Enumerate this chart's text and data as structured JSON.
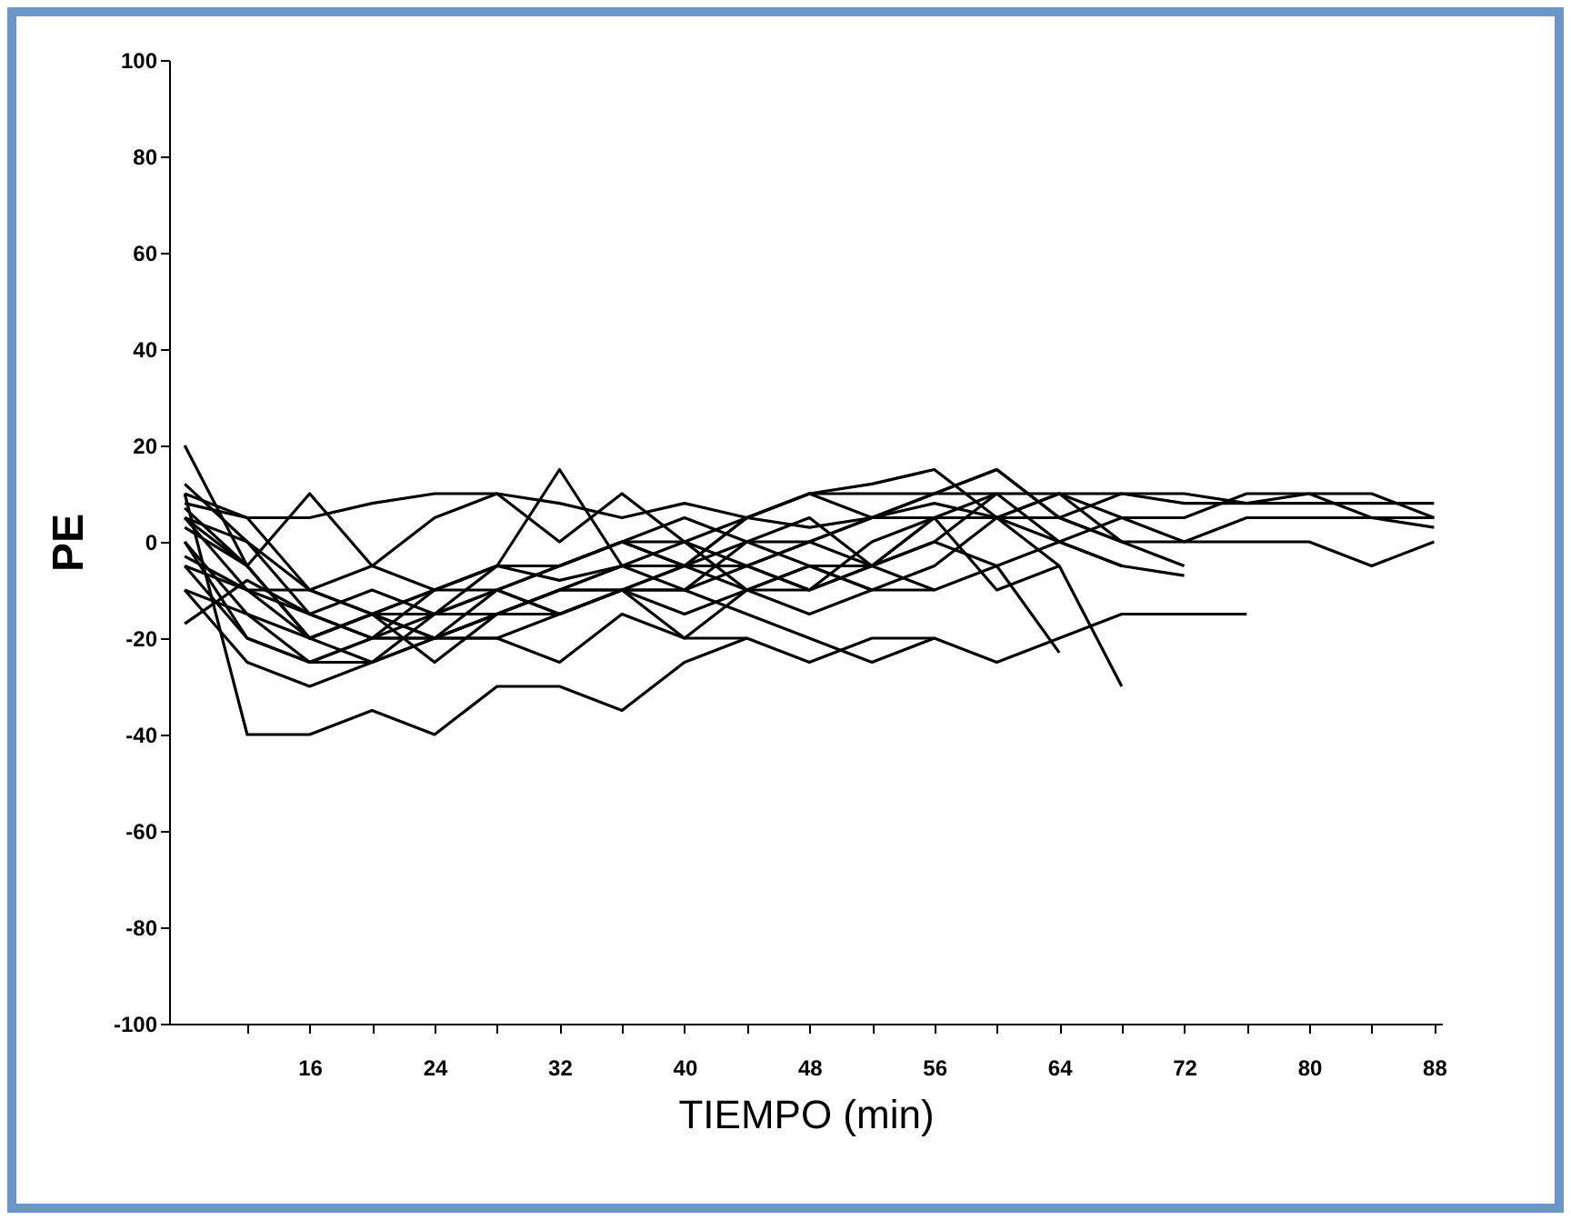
{
  "chart_data": {
    "type": "line",
    "xlabel": "TIEMPO (min)",
    "ylabel": "PE",
    "x": [
      8,
      12,
      16,
      20,
      24,
      28,
      32,
      36,
      40,
      44,
      48,
      52,
      56,
      60,
      64,
      68,
      72,
      76,
      80,
      84,
      88
    ],
    "xlim": [
      7,
      88.5
    ],
    "ylim": [
      -100,
      100
    ],
    "xticks": [
      {
        "value": 12,
        "label": null
      },
      16,
      {
        "value": 20,
        "label": null
      },
      24,
      {
        "value": 28,
        "label": null
      },
      32,
      {
        "value": 36,
        "label": null
      },
      40,
      {
        "value": 44,
        "label": null
      },
      48,
      {
        "value": 52,
        "label": null
      },
      56,
      {
        "value": 60,
        "label": null
      },
      64,
      {
        "value": 68,
        "label": null
      },
      72,
      {
        "value": 76,
        "label": null
      },
      80,
      {
        "value": 84,
        "label": null
      },
      88
    ],
    "yticks": [
      -100,
      -80,
      -60,
      -40,
      -20,
      0,
      20,
      40,
      60,
      80,
      100
    ],
    "grid": false,
    "legend": false,
    "marker": "none",
    "line_style": "solid",
    "series": [
      {
        "color": "#000000",
        "values": [
          10,
          -40,
          -40,
          -35,
          -40,
          -30,
          -30,
          -35,
          -25,
          -20,
          null,
          null,
          null,
          null,
          null,
          null,
          null,
          null,
          null,
          null,
          null
        ]
      },
      {
        "color": "#000000",
        "values": [
          20,
          -5,
          -20,
          -25,
          -15,
          -10,
          -15,
          -10,
          -5,
          -10,
          -5,
          -10,
          null,
          null,
          null,
          null,
          null,
          null,
          null,
          null,
          null
        ]
      },
      {
        "color": "#000000",
        "values": [
          10,
          5,
          5,
          8,
          10,
          10,
          8,
          5,
          8,
          5,
          10,
          10,
          10,
          10,
          10,
          10,
          8,
          8,
          8,
          8,
          8
        ]
      },
      {
        "color": "#000000",
        "values": [
          5,
          -10,
          -15,
          -20,
          -10,
          -5,
          -8,
          -5,
          0,
          5,
          3,
          5,
          8,
          5,
          5,
          0,
          0,
          0,
          0,
          -5,
          0
        ]
      },
      {
        "color": "#000000",
        "values": [
          0,
          -15,
          -20,
          -15,
          -10,
          -10,
          -5,
          0,
          -5,
          5,
          10,
          12,
          15,
          5,
          0,
          5,
          5,
          10,
          10,
          10,
          5
        ]
      },
      {
        "color": "#000000",
        "values": [
          8,
          5,
          -10,
          -15,
          -20,
          -15,
          -10,
          -5,
          -5,
          0,
          -5,
          -10,
          -5,
          5,
          -5,
          -30,
          null,
          null,
          null,
          null,
          null
        ]
      },
      {
        "color": "#000000",
        "values": [
          -5,
          -20,
          -25,
          -25,
          -20,
          -20,
          -15,
          -10,
          -10,
          -15,
          -20,
          -25,
          -20,
          -25,
          -20,
          -15,
          -15,
          -15,
          null,
          null,
          null
        ]
      },
      {
        "color": "#000000",
        "values": [
          -10,
          -25,
          -30,
          -25,
          -20,
          -15,
          -10,
          -10,
          -15,
          -10,
          -5,
          -5,
          0,
          -5,
          -23,
          null,
          null,
          null,
          null,
          null,
          null
        ]
      },
      {
        "color": "#000000",
        "values": [
          0,
          -20,
          -25,
          -20,
          -15,
          -15,
          -10,
          -10,
          -20,
          -20,
          -25,
          -20,
          -20,
          null,
          null,
          null,
          null,
          null,
          null,
          null,
          null
        ]
      },
      {
        "color": "#000000",
        "values": [
          5,
          0,
          -10,
          -15,
          -10,
          -5,
          -5,
          0,
          -5,
          -5,
          0,
          5,
          5,
          10,
          0,
          -5,
          -7,
          null,
          null,
          null,
          null
        ]
      },
      {
        "color": "#000000",
        "values": [
          -5,
          -10,
          -20,
          -15,
          -15,
          -10,
          -15,
          -10,
          -5,
          -5,
          -10,
          -5,
          5,
          5,
          10,
          5,
          0,
          5,
          5,
          5,
          3
        ]
      },
      {
        "color": "#000000",
        "values": [
          12,
          0,
          -15,
          -20,
          -20,
          -10,
          -5,
          0,
          5,
          0,
          0,
          5,
          10,
          15,
          5,
          10,
          10,
          8,
          10,
          5,
          5
        ]
      },
      {
        "color": "#000000",
        "values": [
          3,
          -5,
          -20,
          -15,
          -20,
          -20,
          -25,
          -15,
          -20,
          -10,
          -15,
          -10,
          -10,
          null,
          null,
          null,
          null,
          null,
          null,
          null,
          null
        ]
      },
      {
        "color": "#000000",
        "values": [
          -3,
          -10,
          -10,
          -5,
          5,
          10,
          0,
          10,
          0,
          -10,
          -10,
          -5,
          0,
          10,
          null,
          null,
          null,
          null,
          null,
          null,
          null
        ]
      },
      {
        "color": "#000000",
        "values": [
          -10,
          -15,
          -25,
          -20,
          -20,
          -15,
          -15,
          -10,
          -10,
          -5,
          0,
          -5,
          -10,
          -5,
          0,
          -5,
          null,
          null,
          null,
          null,
          null
        ]
      },
      {
        "color": "#000000",
        "values": [
          7,
          -5,
          10,
          -5,
          -10,
          -5,
          15,
          -5,
          -10,
          0,
          5,
          -5,
          5,
          -10,
          -5,
          null,
          null,
          null,
          null,
          null,
          null
        ]
      },
      {
        "color": "#000000",
        "values": [
          -17,
          -8,
          -15,
          -10,
          -15,
          -5,
          -5,
          0,
          0,
          -5,
          -10,
          0,
          5,
          5,
          10,
          0,
          -5,
          null,
          null,
          null,
          null
        ]
      },
      {
        "color": "#000000",
        "values": [
          5,
          -5,
          -20,
          -15,
          -25,
          -15,
          -10,
          -5,
          -5,
          5,
          10,
          5,
          10,
          15,
          5,
          0,
          null,
          null,
          null,
          null,
          null
        ]
      }
    ]
  }
}
